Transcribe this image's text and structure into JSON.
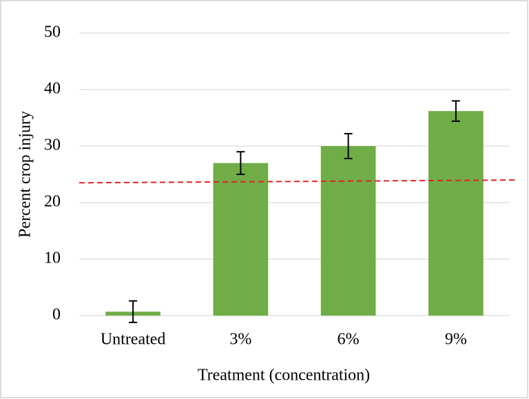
{
  "chart_data": {
    "type": "bar",
    "y_label": "Percent crop injury",
    "x_label": "Treatment (concentration)",
    "categories": [
      "Untreated",
      "3%",
      "6%",
      "9%"
    ],
    "values": [
      0.7,
      27.0,
      30.0,
      36.2
    ],
    "errors": [
      1.9,
      2.0,
      2.2,
      1.8
    ],
    "color": "#70ad47",
    "error_color": "#000000",
    "reference_line": {
      "values": [
        23.5,
        24.0
      ],
      "color": "#e02020"
    },
    "ylim": [
      0,
      50
    ],
    "yticks": [
      0,
      10,
      20,
      30,
      40,
      50
    ],
    "grid": true
  }
}
